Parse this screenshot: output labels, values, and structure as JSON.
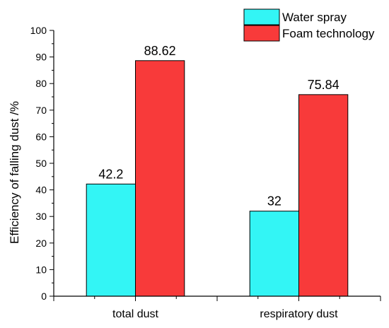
{
  "chart_data": {
    "type": "bar",
    "title": "",
    "xlabel": "",
    "ylabel": "Efficiency of falling dust /%",
    "categories": [
      "total dust",
      "respiratory dust"
    ],
    "series": [
      {
        "name": "Water spray",
        "values": [
          42.2,
          32
        ],
        "labels": [
          "42.2",
          "32"
        ],
        "color": "#33f5f5"
      },
      {
        "name": "Foam technology",
        "values": [
          88.62,
          75.84
        ],
        "labels": [
          "88.62",
          "75.84"
        ],
        "color": "#f83a3a"
      }
    ],
    "ylim": [
      0,
      100
    ],
    "yticks": [
      0,
      10,
      20,
      30,
      40,
      50,
      60,
      70,
      80,
      90,
      100
    ],
    "grid": false,
    "legend_position": "top-right"
  }
}
